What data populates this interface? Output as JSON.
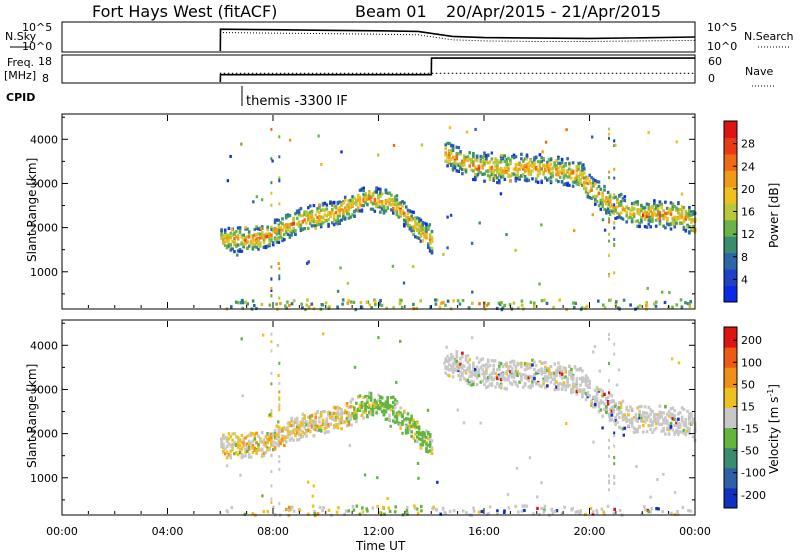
{
  "header": {
    "radar": "Fort Hays West (fitACF)",
    "beam": "Beam 01",
    "dates": "20/Apr/2015 - 21/Apr/2015"
  },
  "panel_labels": {
    "nsky": "N.Sky",
    "nsearch": "N.Search",
    "freq": "Freq.",
    "freq_unit": "[MHz]",
    "nave": "Nave",
    "cpid": "CPID",
    "cpid_value": "themis -3300 IF",
    "ten5": "10^5",
    "ten0": "10^0",
    "freq_ticks": [
      "18",
      "8"
    ],
    "nave_ticks": [
      "60",
      "0"
    ]
  },
  "chart_data": [
    {
      "type": "line",
      "title": "N.Sky / N.Search",
      "x_unit": "hours UT from 20/Apr/2015 00:00",
      "series": [
        {
          "name": "N.Sky",
          "style": "solid",
          "x": [
            6,
            6.01,
            8,
            10,
            12,
            13.5,
            14.8,
            16,
            18,
            20,
            22,
            24
          ],
          "y_frac": [
            0.0,
            0.78,
            0.76,
            0.74,
            0.72,
            0.7,
            0.52,
            0.48,
            0.46,
            0.45,
            0.47,
            0.5
          ]
        },
        {
          "name": "N.Search",
          "style": "dotted",
          "x": [
            6,
            6.01,
            8,
            10,
            12,
            13.5,
            14.8,
            16,
            18,
            20,
            22,
            24
          ],
          "y_frac": [
            0.0,
            0.66,
            0.64,
            0.62,
            0.6,
            0.58,
            0.4,
            0.36,
            0.34,
            0.34,
            0.36,
            0.38
          ]
        }
      ]
    },
    {
      "type": "line",
      "title": "Freq. / Nave",
      "series": [
        {
          "name": "Freq.",
          "style": "solid",
          "x": [
            6,
            6.01,
            14,
            14.01,
            24
          ],
          "y": [
            8,
            10.8,
            10.8,
            17.2,
            17.2
          ]
        },
        {
          "name": "Nave",
          "style": "dotted",
          "x": [
            6,
            6.01,
            24
          ],
          "y": [
            0,
            20,
            20
          ]
        }
      ]
    },
    {
      "type": "heatmap",
      "ylabel": "Slant Range [km]",
      "yticks": [
        1000,
        2000,
        3000,
        4000
      ],
      "ylim": [
        180,
        4550
      ],
      "xlim": [
        0,
        24
      ],
      "colorbar": {
        "label": "Power [dB]",
        "ticks": [
          "4",
          "8",
          "12",
          "16",
          "20",
          "24",
          "28"
        ],
        "colors": [
          "#0b28e6",
          "#2040c8",
          "#2d66a8",
          "#3a8c6e",
          "#6cb24a",
          "#b9c83a",
          "#eec020",
          "#f09a18",
          "#ef6a14",
          "#e83a14",
          "#dd1414"
        ]
      },
      "bands": [
        {
          "x": [
            6.0,
            7.5,
            9.0,
            10.5,
            11.5,
            12.5,
            13.5,
            14.0
          ],
          "y": [
            1750,
            1780,
            2200,
            2400,
            2700,
            2600,
            2000,
            1700
          ],
          "width": 280
        },
        {
          "x": [
            14.5,
            15.5,
            16.5,
            17.5,
            18.5,
            19.5,
            20.5,
            21.5,
            22.5,
            23.5,
            24.0
          ],
          "y": [
            3700,
            3450,
            3350,
            3400,
            3350,
            3250,
            2700,
            2350,
            2350,
            2300,
            2100
          ],
          "width": 320
        }
      ]
    },
    {
      "type": "heatmap",
      "ylabel": "Slant Range [km]",
      "yticks": [
        1000,
        2000,
        3000,
        4000
      ],
      "ylim": [
        180,
        4550
      ],
      "xlim": [
        0,
        24
      ],
      "colorbar": {
        "label": "Velocity [m s-1]",
        "ticks": [
          "200",
          "100",
          "50",
          "15",
          "-15",
          "-50",
          "-100",
          "-200"
        ],
        "colors": [
          "#1030c0",
          "#2e5fa8",
          "#3a8c6e",
          "#63b53c",
          "#c8c8c8",
          "#eec020",
          "#f09018",
          "#ee5a14",
          "#dd1414"
        ]
      },
      "bands": [
        {
          "x": [
            6.0,
            7.5,
            9.0,
            10.5,
            11.5,
            12.5,
            13.5,
            14.0
          ],
          "y": [
            1750,
            1780,
            2200,
            2400,
            2700,
            2600,
            2000,
            1700
          ],
          "width": 280
        },
        {
          "x": [
            14.5,
            15.5,
            16.5,
            17.5,
            18.5,
            19.5,
            20.5,
            21.5,
            22.5,
            23.5,
            24.0
          ],
          "y": [
            3700,
            3450,
            3350,
            3400,
            3350,
            3250,
            2700,
            2350,
            2350,
            2300,
            2100
          ],
          "width": 320
        }
      ]
    }
  ],
  "xaxis": {
    "label": "Time UT",
    "ticks": [
      "00:00",
      "04:00",
      "08:00",
      "12:00",
      "16:00",
      "20:00",
      "00:00"
    ],
    "tick_hours": [
      0,
      4,
      8,
      12,
      16,
      20,
      24
    ]
  },
  "labels": {
    "range_label": "Slant Range [km]",
    "power_label": "Power [dB]",
    "velocity_label": "Velocity [m s",
    "velocity_exp": "-1",
    "velocity_end": "]"
  }
}
